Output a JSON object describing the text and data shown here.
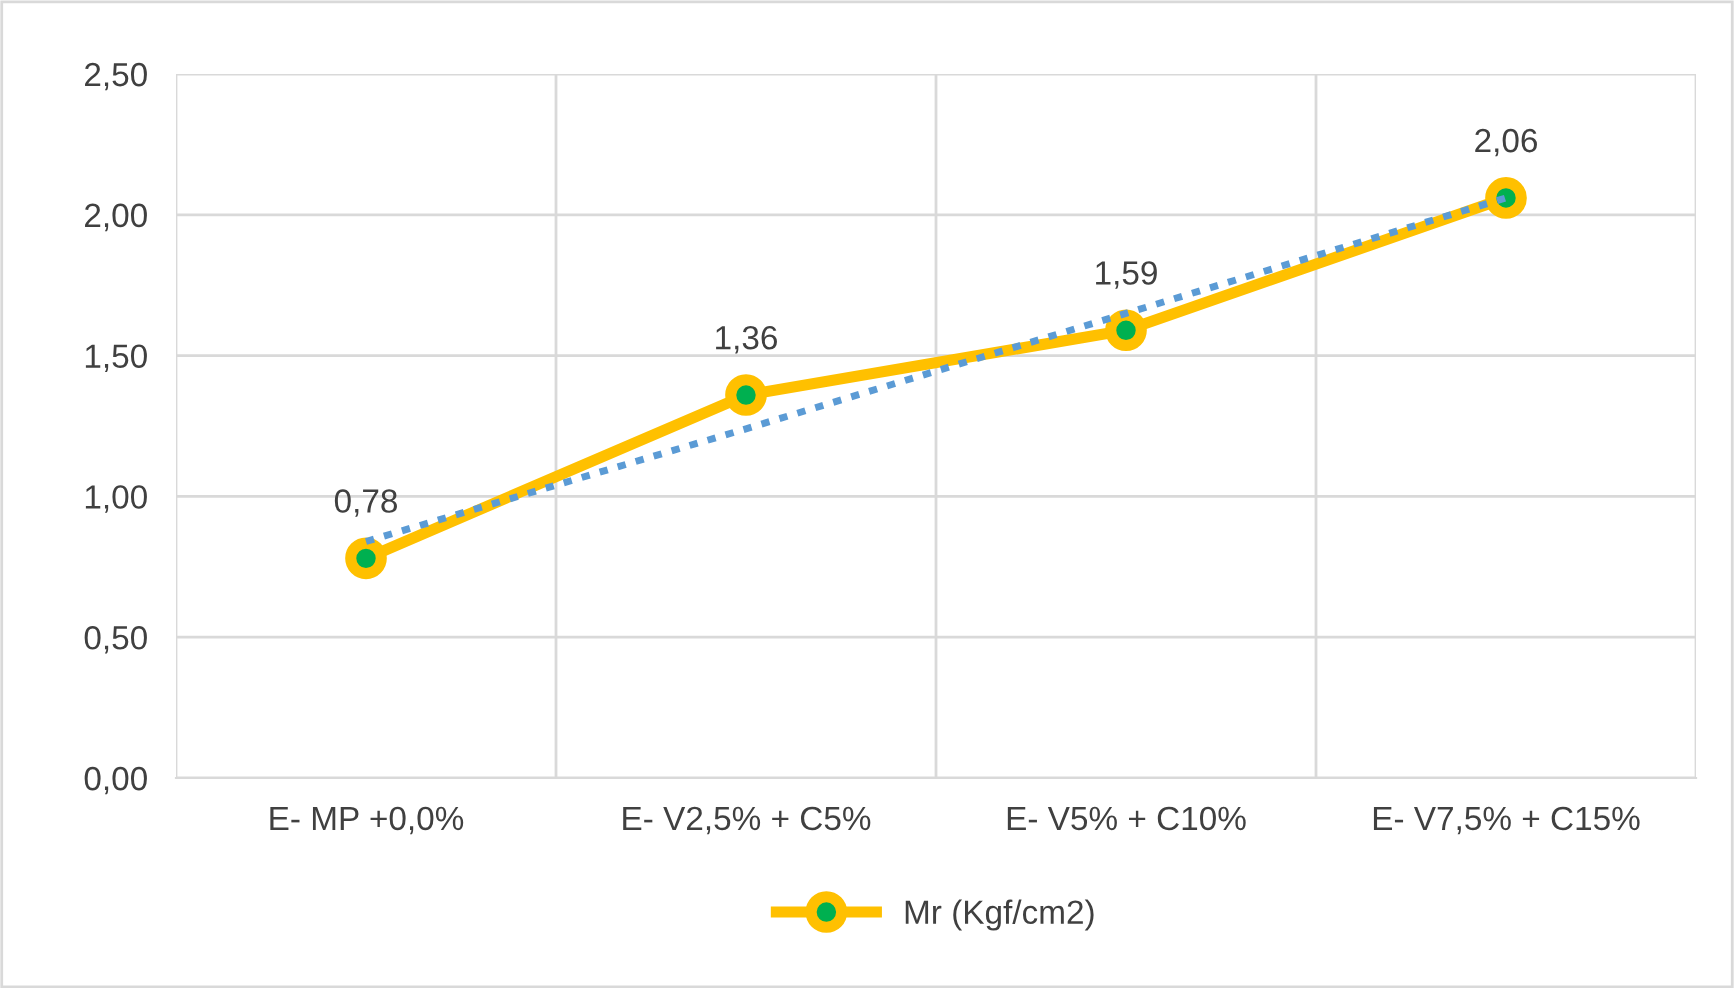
{
  "chart_data": {
    "type": "line",
    "categories": [
      "E- MP +0,0%",
      "E- V2,5% + C5%",
      "E- V5% + C10%",
      "E- V7,5% + C15%"
    ],
    "series": [
      {
        "name": "Mr (Kgf/cm2)",
        "color": "#ffc000",
        "values": [
          0.78,
          1.36,
          1.59,
          2.06
        ],
        "value_labels": [
          "0,78",
          "1,36",
          "1,59",
          "2,06"
        ],
        "marker": "circle",
        "line_style": "solid"
      },
      {
        "type": "line",
        "color": "#5b9bd5",
        "x": [
          "E- MP +0,0%",
          "E- V2,5% + C5%",
          "E- V5% + C10%",
          "E- V7,5% + C15%"
        ],
        "values": [
          0.84,
          1.24,
          1.65,
          2.06
        ],
        "marker": "none",
        "line_style": "dotted"
      }
    ],
    "ylim": [
      0,
      2.5
    ],
    "yticks": [
      {
        "value": 0,
        "label": "0,00"
      },
      {
        "value": 0.5,
        "label": "0,50"
      },
      {
        "value": 1,
        "label": "1,00"
      },
      {
        "value": 1.5,
        "label": "1,50"
      },
      {
        "value": 2,
        "label": "2,00"
      },
      {
        "value": 2.5,
        "label": "2,50"
      }
    ],
    "grid": true,
    "legend": "bottom"
  }
}
